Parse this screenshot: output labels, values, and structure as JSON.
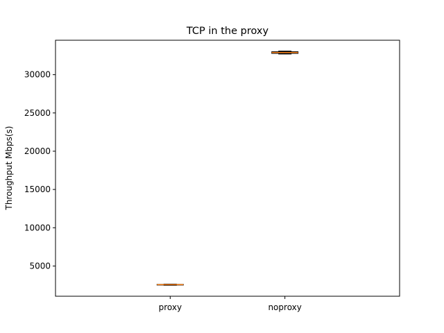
{
  "chart_data": {
    "type": "box",
    "title": "TCP in the proxy",
    "xlabel": "",
    "ylabel": "Throughput Mbps(s)",
    "categories": [
      "proxy",
      "noproxy"
    ],
    "boxes": [
      {
        "name": "proxy",
        "whisker_low": 2480,
        "q1": 2520,
        "median": 2560,
        "q3": 2600,
        "whisker_high": 2640
      },
      {
        "name": "noproxy",
        "whisker_low": 32700,
        "q1": 32780,
        "median": 32900,
        "q3": 33000,
        "whisker_high": 33080
      }
    ],
    "yticks": [
      5000,
      10000,
      15000,
      20000,
      25000,
      30000
    ],
    "ylim": [
      1050,
      34500
    ],
    "grid": false,
    "legend": "none",
    "colors": {
      "median": "#ff7f0e",
      "box": "#000000",
      "axis": "#000000"
    }
  }
}
